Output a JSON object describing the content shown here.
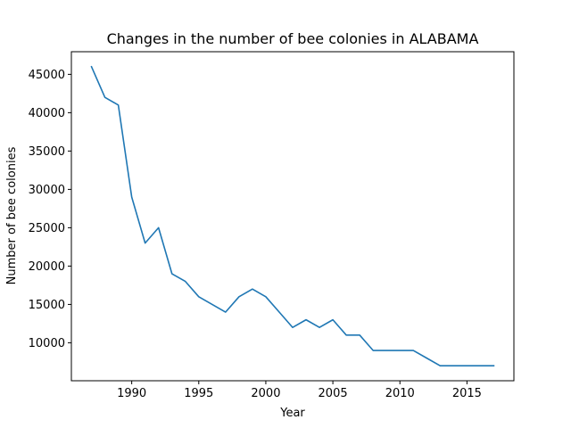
{
  "chart_data": {
    "type": "line",
    "title": "Changes in the number of bee colonies in ALABAMA",
    "xlabel": "Year",
    "ylabel": "Number of bee colonies",
    "xlim": [
      1985.5,
      2018.5
    ],
    "ylim": [
      5050,
      47950
    ],
    "xticks": [
      1990,
      1995,
      2000,
      2005,
      2010,
      2015
    ],
    "yticks": [
      10000,
      15000,
      20000,
      25000,
      30000,
      35000,
      40000,
      45000
    ],
    "grid": false,
    "legend": "none",
    "series": [
      {
        "color": "#1f77b4",
        "x": [
          1987,
          1988,
          1989,
          1990,
          1991,
          1992,
          1993,
          1994,
          1995,
          1996,
          1997,
          1998,
          1999,
          2000,
          2001,
          2002,
          2003,
          2004,
          2005,
          2006,
          2007,
          2008,
          2009,
          2010,
          2011,
          2012,
          2013,
          2014,
          2015,
          2016,
          2017
        ],
        "y": [
          46000,
          42000,
          41000,
          29000,
          23000,
          25000,
          19000,
          18000,
          16000,
          15000,
          14000,
          16000,
          17000,
          16000,
          14000,
          12000,
          13000,
          12000,
          13000,
          11000,
          11000,
          9000,
          9000,
          9000,
          9000,
          8000,
          7000,
          7000,
          7000,
          7000,
          7000
        ]
      }
    ]
  }
}
